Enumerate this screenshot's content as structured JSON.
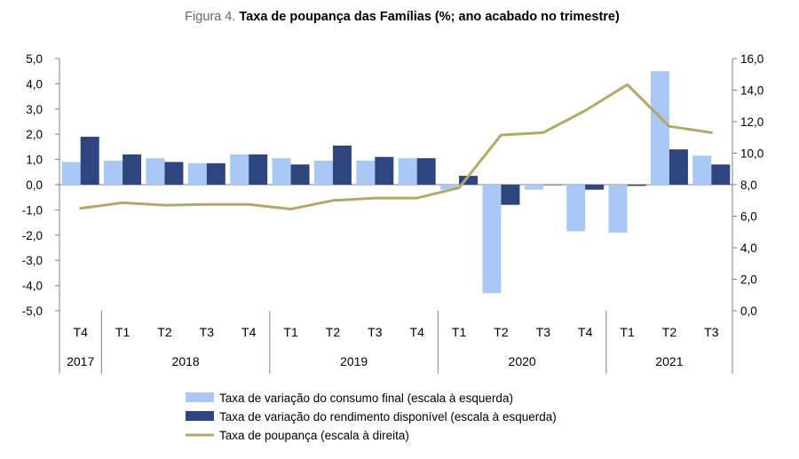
{
  "chart_data": {
    "type": "bar",
    "title_prefix": "Figura 4.",
    "title": "Taxa de poupança das Famílias (%; ano acabado no trimestre)",
    "categories": [
      "T4",
      "T1",
      "T2",
      "T3",
      "T4",
      "T1",
      "T2",
      "T3",
      "T4",
      "T1",
      "T2",
      "T3",
      "T4",
      "T1",
      "T2",
      "T3"
    ],
    "years": [
      {
        "label": "2017",
        "count": 1
      },
      {
        "label": "2018",
        "count": 4
      },
      {
        "label": "2019",
        "count": 4
      },
      {
        "label": "2020",
        "count": 4
      },
      {
        "label": "2021",
        "count": 3
      }
    ],
    "series": [
      {
        "name": "Taxa de variação do consumo final (escala à esquerda)",
        "kind": "bar",
        "axis": "left",
        "color": "#a9c8f5",
        "values": [
          0.9,
          0.95,
          1.05,
          0.85,
          1.2,
          1.05,
          0.95,
          0.95,
          1.05,
          -0.2,
          -4.3,
          -0.2,
          -1.85,
          -1.9,
          4.5,
          1.15
        ]
      },
      {
        "name": "Taxa de variação do rendimento disponível (escala à esquerda)",
        "kind": "bar",
        "axis": "left",
        "color": "#2e4580",
        "values": [
          1.9,
          1.2,
          0.9,
          0.85,
          1.2,
          0.8,
          1.55,
          1.1,
          1.05,
          0.35,
          -0.8,
          0.0,
          -0.2,
          -0.05,
          1.4,
          0.8
        ]
      },
      {
        "name": "Taxa de poupança (escala à direita)",
        "kind": "line",
        "axis": "right",
        "color": "#b5a867",
        "values": [
          6.5,
          6.85,
          6.7,
          6.75,
          6.75,
          6.45,
          7.0,
          7.15,
          7.15,
          7.8,
          11.15,
          11.3,
          12.7,
          14.35,
          11.7,
          11.3
        ]
      }
    ],
    "y_left": {
      "min": -5.0,
      "max": 5.0,
      "step": 1.0,
      "ticks": [
        "5,0",
        "4,0",
        "3,0",
        "2,0",
        "1,0",
        "0,0",
        "-1,0",
        "-2,0",
        "-3,0",
        "-4,0",
        "-5,0"
      ]
    },
    "y_right": {
      "min": 0.0,
      "max": 16.0,
      "step": 2.0,
      "ticks": [
        "16,0",
        "14,0",
        "12,0",
        "10,0",
        "8,0",
        "6,0",
        "4,0",
        "2,0",
        "0,0"
      ]
    },
    "legend_position": "bottom"
  }
}
